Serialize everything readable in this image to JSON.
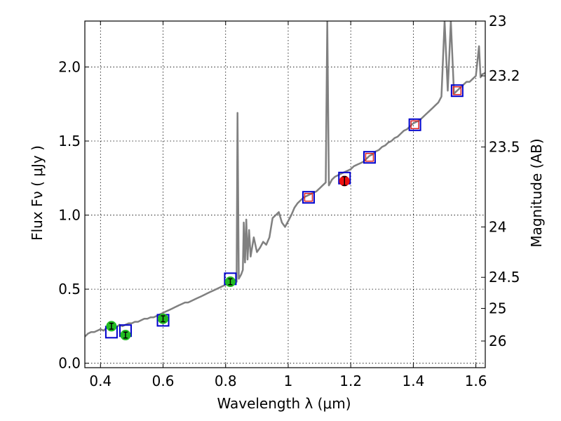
{
  "chart_data": {
    "type": "scatter",
    "xlabel": "Wavelength  λ (μm)",
    "ylabel": "Flux  Fν  ( μJy )",
    "y2label": "Magnitude (AB)",
    "xlim": [
      0.35,
      1.63
    ],
    "ylim": [
      -0.03,
      2.31
    ],
    "grid": true,
    "x_ticks": [
      {
        "value": 0.4,
        "label": "0.4"
      },
      {
        "value": 0.6,
        "label": "0.6"
      },
      {
        "value": 0.8,
        "label": "0.8"
      },
      {
        "value": 1.0,
        "label": "1"
      },
      {
        "value": 1.2,
        "label": "1.2"
      },
      {
        "value": 1.4,
        "label": "1.4"
      },
      {
        "value": 1.6,
        "label": "1.6"
      }
    ],
    "y_ticks": [
      {
        "value": 0.0,
        "label": "0.0"
      },
      {
        "value": 0.5,
        "label": "0.5"
      },
      {
        "value": 1.0,
        "label": "1.0"
      },
      {
        "value": 1.5,
        "label": "1.5"
      },
      {
        "value": 2.0,
        "label": "2.0"
      }
    ],
    "y2_ticks": [
      {
        "flux": 2.31,
        "label": "23"
      },
      {
        "flux": 1.94,
        "label": "23.2"
      },
      {
        "flux": 1.46,
        "label": "23.5"
      },
      {
        "flux": 0.92,
        "label": "24"
      },
      {
        "flux": 0.58,
        "label": "24.5"
      },
      {
        "flux": 0.37,
        "label": "25"
      },
      {
        "flux": 0.15,
        "label": "26"
      }
    ],
    "series": [
      {
        "role": "model_spectrum",
        "color": "#808080",
        "points": [
          [
            0.35,
            0.18
          ],
          [
            0.36,
            0.2
          ],
          [
            0.37,
            0.21
          ],
          [
            0.38,
            0.21
          ],
          [
            0.39,
            0.22
          ],
          [
            0.4,
            0.23
          ],
          [
            0.41,
            0.22
          ],
          [
            0.42,
            0.24
          ],
          [
            0.43,
            0.25
          ],
          [
            0.44,
            0.25
          ],
          [
            0.45,
            0.24
          ],
          [
            0.46,
            0.26
          ],
          [
            0.47,
            0.25
          ],
          [
            0.48,
            0.26
          ],
          [
            0.49,
            0.27
          ],
          [
            0.5,
            0.27
          ],
          [
            0.51,
            0.28
          ],
          [
            0.52,
            0.28
          ],
          [
            0.53,
            0.29
          ],
          [
            0.54,
            0.3
          ],
          [
            0.55,
            0.3
          ],
          [
            0.56,
            0.31
          ],
          [
            0.57,
            0.31
          ],
          [
            0.58,
            0.32
          ],
          [
            0.59,
            0.33
          ],
          [
            0.6,
            0.34
          ],
          [
            0.61,
            0.35
          ],
          [
            0.62,
            0.36
          ],
          [
            0.63,
            0.37
          ],
          [
            0.64,
            0.38
          ],
          [
            0.65,
            0.39
          ],
          [
            0.66,
            0.4
          ],
          [
            0.67,
            0.41
          ],
          [
            0.68,
            0.41
          ],
          [
            0.69,
            0.42
          ],
          [
            0.7,
            0.43
          ],
          [
            0.71,
            0.44
          ],
          [
            0.72,
            0.45
          ],
          [
            0.73,
            0.46
          ],
          [
            0.74,
            0.47
          ],
          [
            0.75,
            0.48
          ],
          [
            0.76,
            0.49
          ],
          [
            0.77,
            0.5
          ],
          [
            0.78,
            0.51
          ],
          [
            0.79,
            0.52
          ],
          [
            0.8,
            0.53
          ],
          [
            0.81,
            0.54
          ],
          [
            0.82,
            0.55
          ],
          [
            0.83,
            0.56
          ],
          [
            0.835,
            0.55
          ],
          [
            0.838,
            1.69
          ],
          [
            0.842,
            0.57
          ],
          [
            0.85,
            0.6
          ],
          [
            0.855,
            0.63
          ],
          [
            0.858,
            0.95
          ],
          [
            0.862,
            0.68
          ],
          [
            0.866,
            0.97
          ],
          [
            0.87,
            0.7
          ],
          [
            0.875,
            0.9
          ],
          [
            0.88,
            0.72
          ],
          [
            0.89,
            0.85
          ],
          [
            0.9,
            0.75
          ],
          [
            0.91,
            0.78
          ],
          [
            0.92,
            0.82
          ],
          [
            0.93,
            0.8
          ],
          [
            0.94,
            0.85
          ],
          [
            0.95,
            0.98
          ],
          [
            0.96,
            1.0
          ],
          [
            0.97,
            1.02
          ],
          [
            0.98,
            0.95
          ],
          [
            0.99,
            0.92
          ],
          [
            1.0,
            0.96
          ],
          [
            1.01,
            1.0
          ],
          [
            1.02,
            1.05
          ],
          [
            1.03,
            1.08
          ],
          [
            1.04,
            1.1
          ],
          [
            1.05,
            1.12
          ],
          [
            1.06,
            1.13
          ],
          [
            1.07,
            1.14
          ],
          [
            1.08,
            1.15
          ],
          [
            1.09,
            1.16
          ],
          [
            1.1,
            1.18
          ],
          [
            1.11,
            1.2
          ],
          [
            1.12,
            1.22
          ],
          [
            1.125,
            2.31
          ],
          [
            1.13,
            1.2
          ],
          [
            1.14,
            1.24
          ],
          [
            1.15,
            1.26
          ],
          [
            1.16,
            1.27
          ],
          [
            1.17,
            1.28
          ],
          [
            1.18,
            1.29
          ],
          [
            1.19,
            1.3
          ],
          [
            1.2,
            1.31
          ],
          [
            1.21,
            1.33
          ],
          [
            1.22,
            1.34
          ],
          [
            1.23,
            1.35
          ],
          [
            1.24,
            1.36
          ],
          [
            1.25,
            1.38
          ],
          [
            1.26,
            1.4
          ],
          [
            1.27,
            1.41
          ],
          [
            1.28,
            1.43
          ],
          [
            1.29,
            1.44
          ],
          [
            1.3,
            1.46
          ],
          [
            1.31,
            1.47
          ],
          [
            1.32,
            1.49
          ],
          [
            1.33,
            1.5
          ],
          [
            1.34,
            1.52
          ],
          [
            1.35,
            1.53
          ],
          [
            1.36,
            1.55
          ],
          [
            1.37,
            1.57
          ],
          [
            1.38,
            1.58
          ],
          [
            1.39,
            1.6
          ],
          [
            1.4,
            1.62
          ],
          [
            1.41,
            1.63
          ],
          [
            1.42,
            1.64
          ],
          [
            1.43,
            1.66
          ],
          [
            1.44,
            1.68
          ],
          [
            1.45,
            1.7
          ],
          [
            1.46,
            1.72
          ],
          [
            1.47,
            1.74
          ],
          [
            1.48,
            1.76
          ],
          [
            1.49,
            1.8
          ],
          [
            1.5,
            2.31
          ],
          [
            1.51,
            1.84
          ],
          [
            1.52,
            2.31
          ],
          [
            1.53,
            1.82
          ],
          [
            1.54,
            1.84
          ],
          [
            1.55,
            1.86
          ],
          [
            1.56,
            1.88
          ],
          [
            1.57,
            1.9
          ],
          [
            1.58,
            1.9
          ],
          [
            1.59,
            1.92
          ],
          [
            1.6,
            1.94
          ],
          [
            1.61,
            2.14
          ],
          [
            1.615,
            1.93
          ],
          [
            1.62,
            1.95
          ],
          [
            1.63,
            1.96
          ]
        ]
      },
      {
        "role": "model_photometry",
        "marker": "open_square",
        "color": "#0000cc",
        "x": [
          0.435,
          0.48,
          0.6,
          0.815,
          1.065,
          1.18,
          1.26,
          1.405,
          1.54
        ],
        "y": [
          0.21,
          0.22,
          0.29,
          0.57,
          1.12,
          1.25,
          1.39,
          1.61,
          1.84
        ]
      },
      {
        "role": "observed_optical",
        "marker": "filled_circle",
        "color": "#22bb22",
        "x": [
          0.435,
          0.48,
          0.6,
          0.815
        ],
        "y": [
          0.25,
          0.19,
          0.3,
          0.55
        ],
        "yerr": [
          0.02,
          0.02,
          0.02,
          0.02
        ]
      },
      {
        "role": "observed_nir",
        "marker": "filled_circle",
        "color": "#ee1111",
        "x": [
          1.18
        ],
        "y": [
          1.23
        ],
        "yerr": [
          0.03
        ]
      },
      {
        "role": "nir_points",
        "marker": "open_square_small",
        "color": "#dd2222",
        "x": [
          1.065,
          1.26,
          1.405,
          1.54
        ],
        "y": [
          1.12,
          1.39,
          1.61,
          1.84
        ]
      }
    ]
  }
}
